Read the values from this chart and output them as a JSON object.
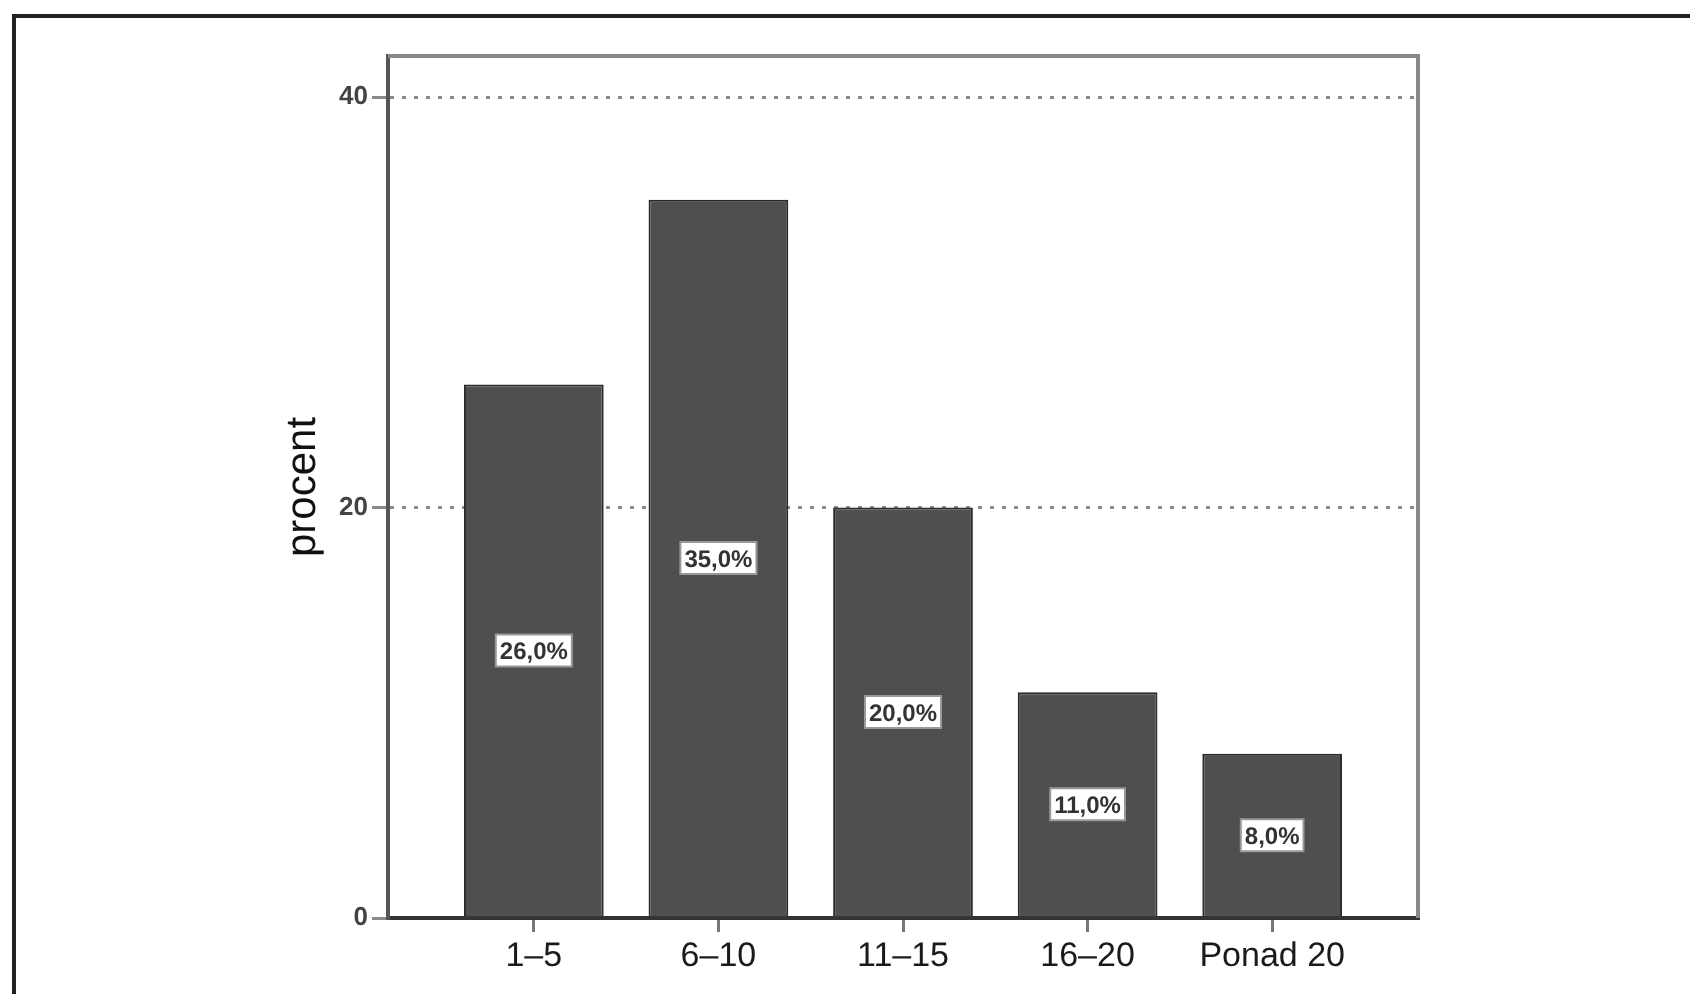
{
  "chart_data": {
    "type": "bar",
    "ylabel": "procent",
    "categories": [
      "1–5",
      "6–10",
      "11–15",
      "16–20",
      "Ponad 20"
    ],
    "values": [
      26,
      35,
      20,
      11,
      8
    ],
    "value_labels": [
      "26,0%",
      "35,0%",
      "20,0%",
      "11,0%",
      "8,0%"
    ],
    "color": "#4f4f4f",
    "ylim": [
      0,
      42
    ],
    "yticks": [
      0,
      20,
      40
    ],
    "grid": "y"
  }
}
